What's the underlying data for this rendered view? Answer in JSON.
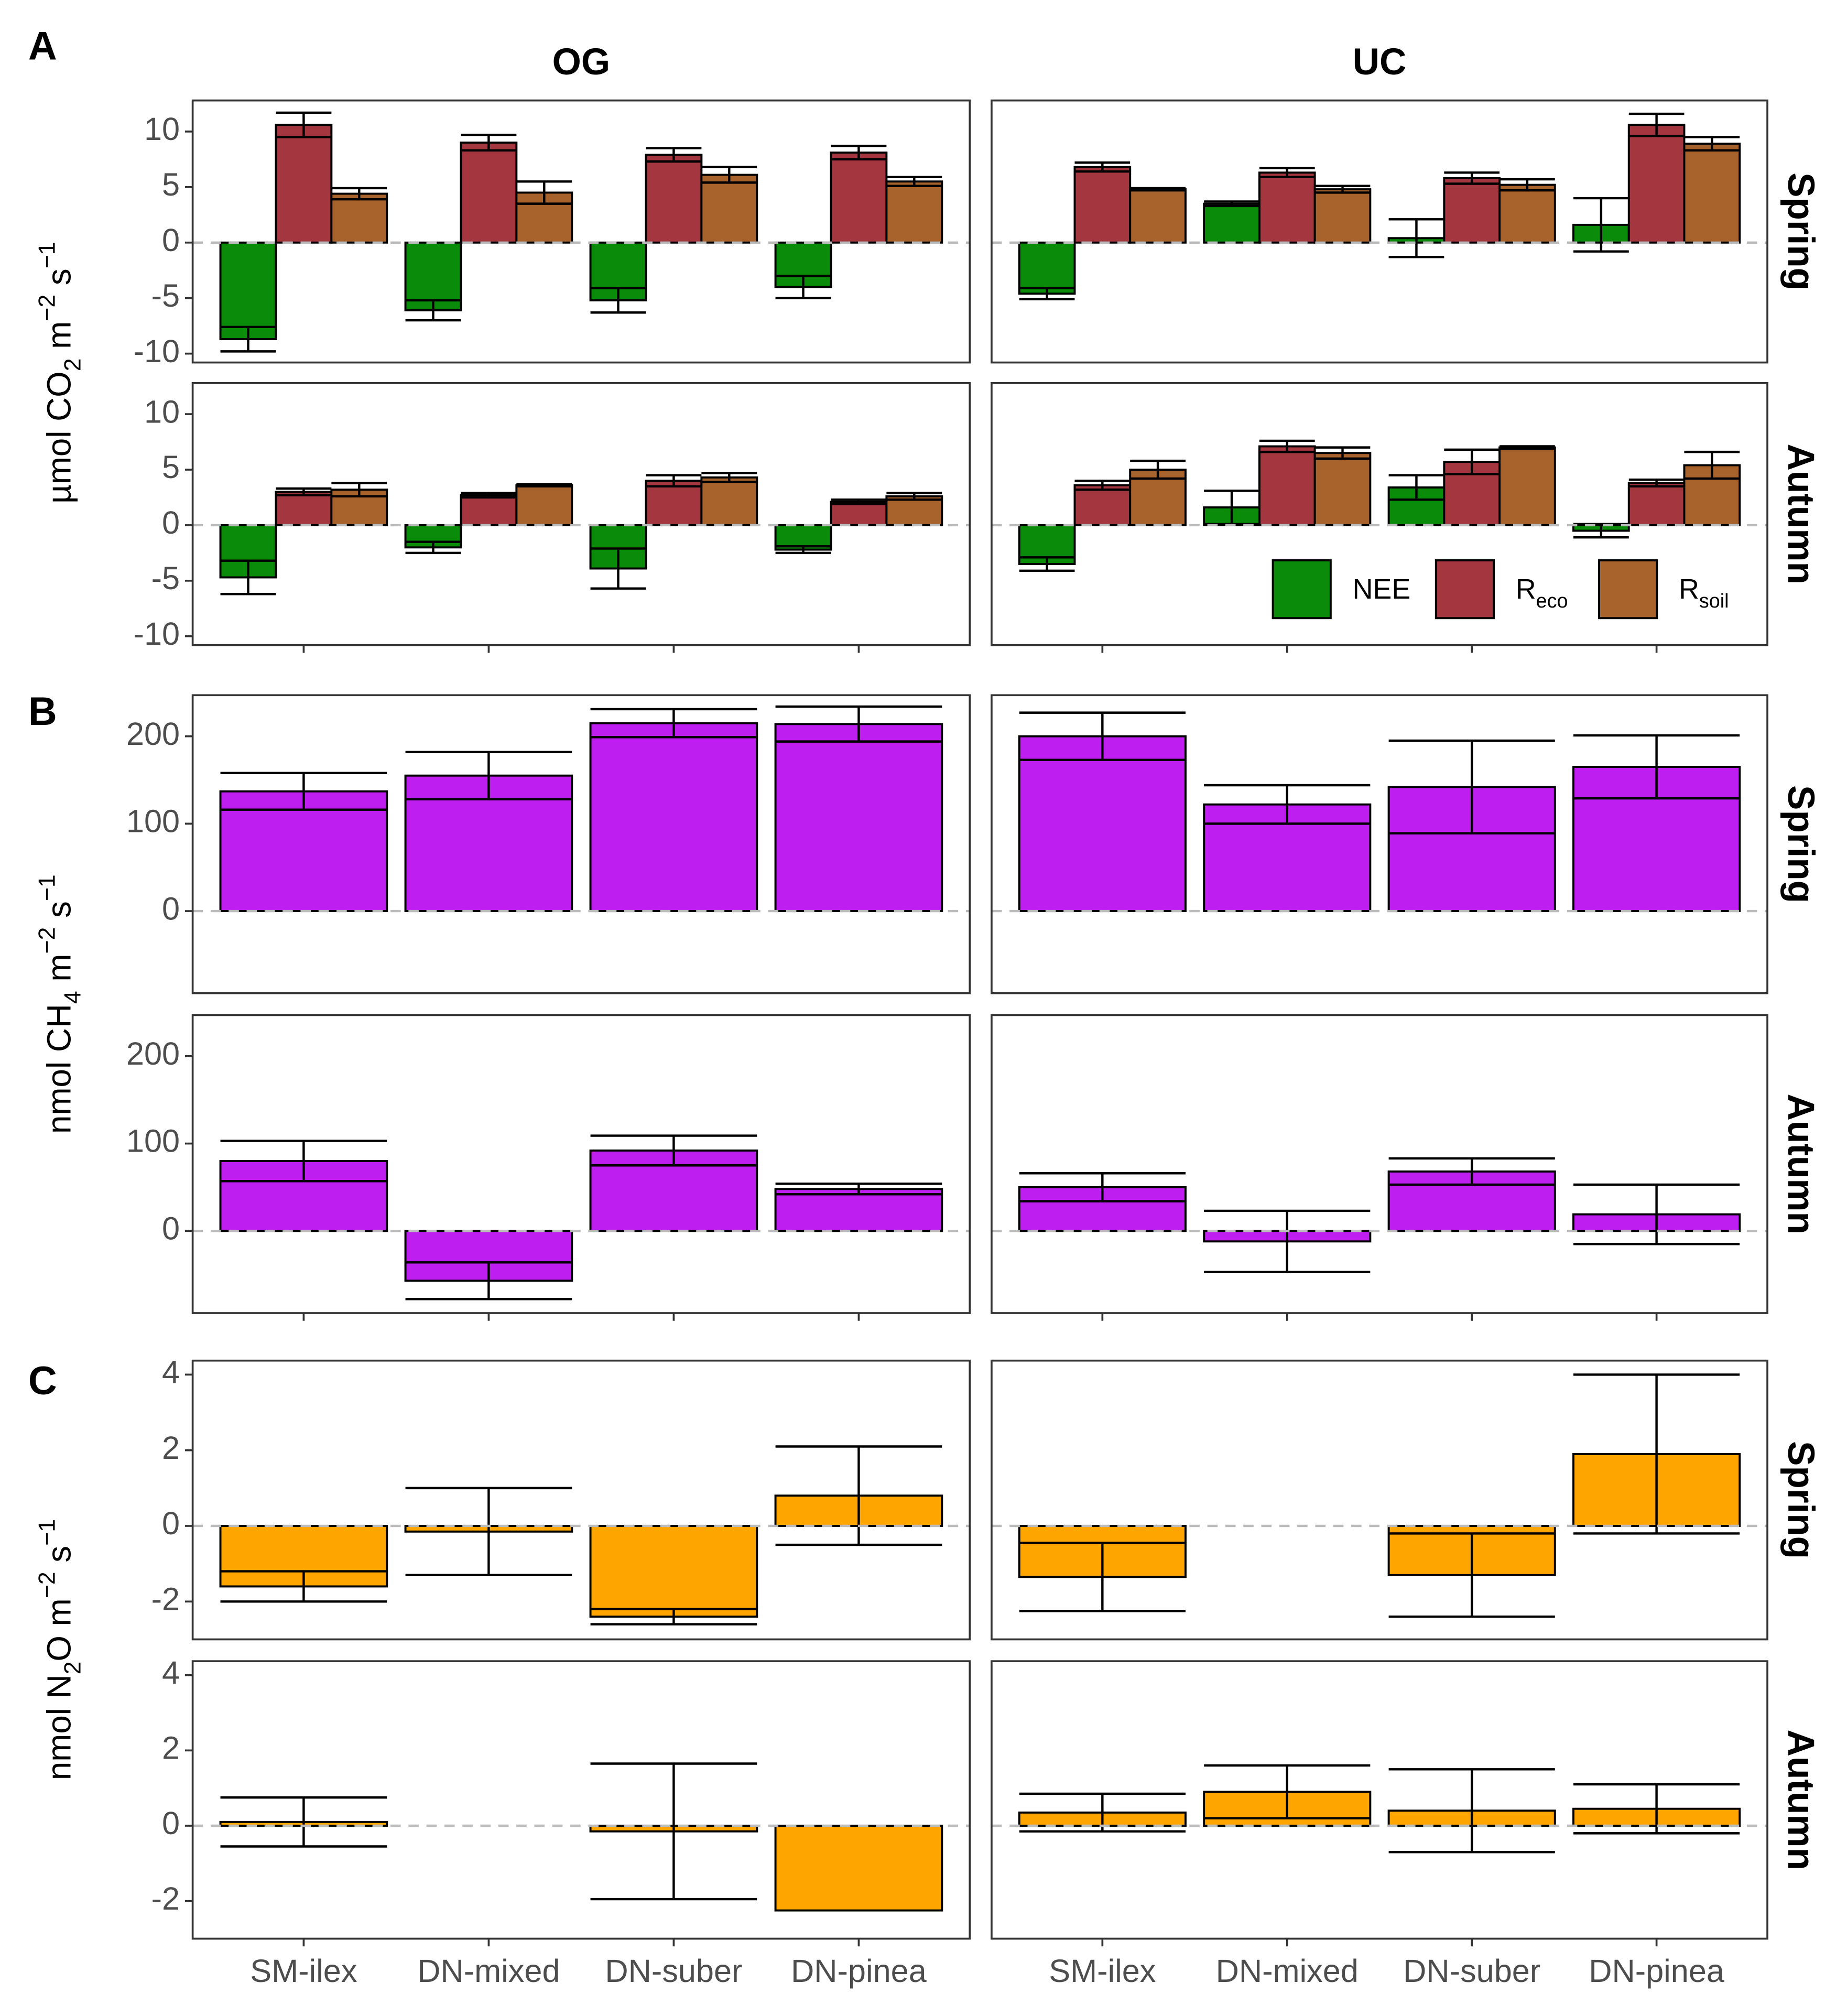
{
  "columns": [
    "OG",
    "UC"
  ],
  "categories": [
    "SM-ilex",
    "DN-mixed",
    "DN-suber",
    "DN-pinea"
  ],
  "chart_data": [
    {
      "type": "bar",
      "label": "A",
      "ylabel": [
        {
          "t": "µmol CO"
        },
        {
          "t": "2",
          "shift": "sub"
        },
        {
          "t": " m"
        },
        {
          "t": "−2",
          "shift": "super"
        },
        {
          "t": " s"
        },
        {
          "t": "−1",
          "shift": "super"
        }
      ],
      "rows": [
        "Spring",
        "Autumn"
      ],
      "ylim": [
        -10.8,
        12.8
      ],
      "yticks": [
        -10,
        -5,
        0,
        5,
        10
      ],
      "legend": "bottom-right",
      "series": [
        {
          "name": [
            {
              "t": "NEE"
            }
          ],
          "color": "#0A8C0A",
          "values": [
            [
              [
                -8.7,
                -6.1,
                -5.2,
                -4.0
              ],
              [
                -4.6,
                3.5,
                0.4,
                1.6
              ]
            ],
            [
              [
                -4.7,
                -2.0,
                -3.9,
                -2.2
              ],
              [
                -3.5,
                1.6,
                3.4,
                -0.5
              ]
            ]
          ],
          "errors": [
            [
              [
                1.1,
                0.9,
                1.1,
                1.0
              ],
              [
                0.5,
                0.2,
                1.7,
                2.4
              ]
            ],
            [
              [
                1.5,
                0.5,
                1.8,
                0.3
              ],
              [
                0.6,
                1.5,
                1.1,
                0.6
              ]
            ]
          ]
        },
        {
          "name": [
            {
              "t": "R"
            },
            {
              "t": "eco",
              "shift": "sub"
            }
          ],
          "color": "#A3363E",
          "values": [
            [
              [
                10.6,
                9.0,
                7.9,
                8.1
              ],
              [
                6.8,
                6.3,
                5.8,
                10.6
              ]
            ],
            [
              [
                3.0,
                2.7,
                4.0,
                2.1
              ],
              [
                3.6,
                7.1,
                5.7,
                3.8
              ]
            ]
          ],
          "errors": [
            [
              [
                1.1,
                0.7,
                0.6,
                0.6
              ],
              [
                0.4,
                0.4,
                0.5,
                1.0
              ]
            ],
            [
              [
                0.3,
                0.2,
                0.5,
                0.2
              ],
              [
                0.4,
                0.5,
                1.1,
                0.3
              ]
            ]
          ]
        },
        {
          "name": [
            {
              "t": "R"
            },
            {
              "t": "soil",
              "shift": "sub"
            }
          ],
          "color": "#A8632C",
          "values": [
            [
              [
                4.4,
                4.5,
                6.1,
                5.5
              ],
              [
                4.8,
                4.8,
                5.2,
                8.9
              ]
            ],
            [
              [
                3.2,
                3.6,
                4.3,
                2.6
              ],
              [
                5.0,
                6.5,
                7.0,
                5.4
              ]
            ]
          ],
          "errors": [
            [
              [
                0.5,
                1.0,
                0.7,
                0.4
              ],
              [
                0.1,
                0.3,
                0.5,
                0.6
              ]
            ],
            [
              [
                0.6,
                0.1,
                0.4,
                0.3
              ],
              [
                0.8,
                0.5,
                0.1,
                1.2
              ]
            ]
          ]
        }
      ]
    },
    {
      "type": "bar",
      "label": "B",
      "ylabel": [
        {
          "t": "nmol CH"
        },
        {
          "t": "4",
          "shift": "sub"
        },
        {
          "t": " m"
        },
        {
          "t": "−2",
          "shift": "super"
        },
        {
          "t": " s"
        },
        {
          "t": "−1",
          "shift": "super"
        }
      ],
      "rows": [
        "Spring",
        "Autumn"
      ],
      "ylim": [
        -94,
        247
      ],
      "yticks": [
        0,
        100,
        200
      ],
      "series": [
        {
          "color": "#BF1EF0",
          "values": [
            [
              [
                137,
                155,
                215,
                214
              ],
              [
                200,
                122,
                142,
                165
              ]
            ],
            [
              [
                80,
                -57,
                92,
                48
              ],
              [
                50,
                -12,
                68,
                19
              ]
            ]
          ],
          "errors": [
            [
              [
                21,
                27,
                16,
                20
              ],
              [
                27,
                22,
                53,
                36
              ]
            ],
            [
              [
                23,
                21,
                17,
                6
              ],
              [
                16,
                35,
                15,
                34
              ]
            ]
          ]
        }
      ]
    },
    {
      "type": "bar",
      "label": "C",
      "ylabel": [
        {
          "t": "nmol N"
        },
        {
          "t": "2",
          "shift": "sub"
        },
        {
          "t": "O m"
        },
        {
          "t": "−2",
          "shift": "super"
        },
        {
          "t": " s"
        },
        {
          "t": "−1",
          "shift": "super"
        }
      ],
      "rows": [
        "Spring",
        "Autumn"
      ],
      "ylim": [
        -3.0,
        4.37
      ],
      "yticks": [
        -2,
        0,
        2,
        4
      ],
      "series": [
        {
          "color": "#FFA500",
          "values": [
            [
              [
                -1.6,
                -0.15,
                -2.4,
                0.8
              ],
              [
                -1.35,
                null,
                -1.3,
                1.9
              ]
            ],
            [
              [
                0.1,
                null,
                -0.15,
                -2.25
              ],
              [
                0.35,
                0.9,
                0.4,
                0.45
              ]
            ]
          ],
          "errors": [
            [
              [
                0.4,
                1.15,
                0.2,
                1.3
              ],
              [
                0.9,
                null,
                1.1,
                2.1
              ]
            ],
            [
              [
                0.65,
                null,
                1.8,
                null
              ],
              [
                0.5,
                0.7,
                1.1,
                0.65
              ]
            ]
          ]
        }
      ]
    }
  ]
}
